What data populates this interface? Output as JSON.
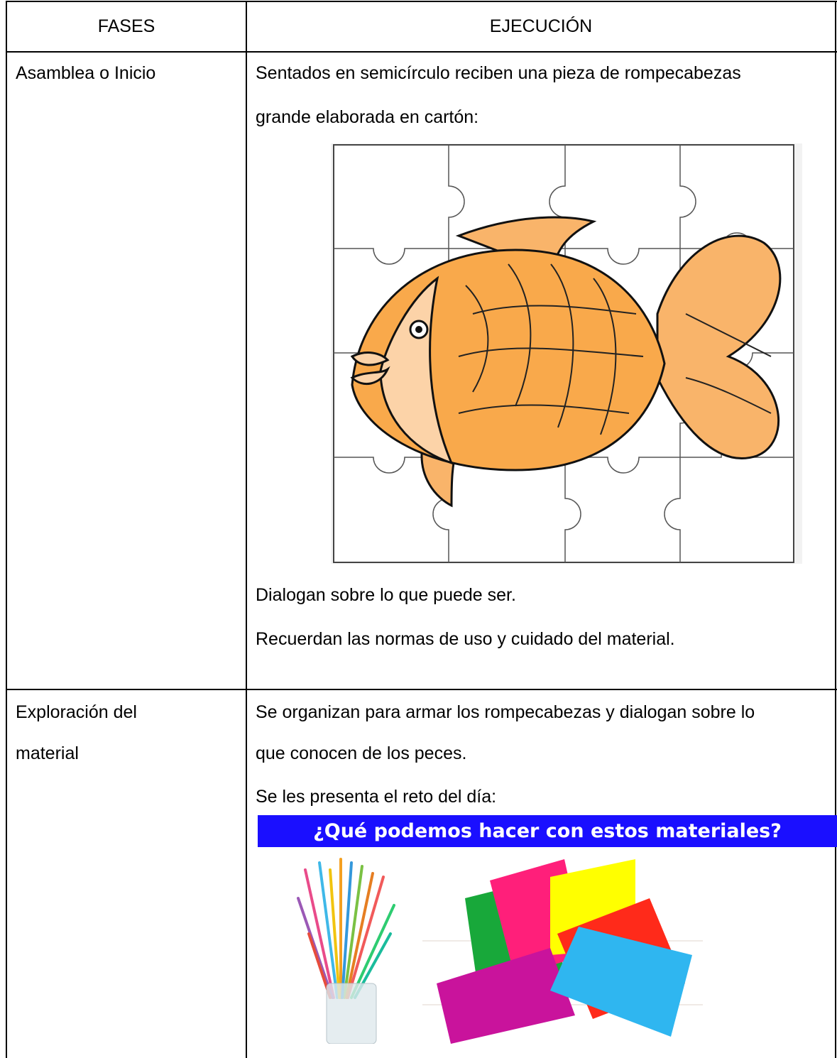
{
  "table": {
    "header": [
      "FASES",
      "EJECUCIÓN"
    ],
    "rows": [
      {
        "phase": "Asamblea o Inicio",
        "lines_before": [
          "Sentados en semicírculo reciben una pieza de rompecabezas",
          "grande elaborada en cartón:"
        ],
        "lines_after": [
          "Dialogan sobre lo que puede ser.",
          "Recuerdan las normas de uso y cuidado del material."
        ]
      },
      {
        "phase": "Exploración del material",
        "lines_before": [
          "Se organizan para armar los rompecabezas y dialogan sobre lo",
          "que conocen de los peces.",
          "Se les presenta el reto del día:"
        ],
        "banner": "¿Qué podemos hacer con estos materiales?"
      }
    ]
  }
}
